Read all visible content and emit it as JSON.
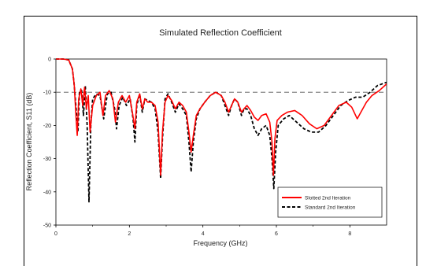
{
  "chart_data": {
    "type": "line",
    "title": "Simulated Reflection Coefficient",
    "xlabel": "Frequency (GHz)",
    "ylabel": "Reflection Coefficient, S11 (dB)",
    "xlim": [
      0,
      9
    ],
    "ylim": [
      -50,
      0
    ],
    "xticks": [
      "0",
      "2",
      "4",
      "6",
      "8"
    ],
    "xtick_values": [
      0,
      2,
      4,
      6,
      8
    ],
    "yticks": [
      "0",
      "-10",
      "-20",
      "-30",
      "-40",
      "-50"
    ],
    "ytick_values": [
      0,
      -10,
      -20,
      -30,
      -40,
      -50
    ],
    "reference_line_y": -10,
    "grid": false,
    "legend_position": "bottom-right",
    "series": [
      {
        "name": "Slotted 2nd Iteration",
        "color": "#ff0000",
        "dash": "solid",
        "points": [
          [
            0.0,
            0.0
          ],
          [
            0.2,
            0.0
          ],
          [
            0.35,
            -0.3
          ],
          [
            0.45,
            -3
          ],
          [
            0.5,
            -8
          ],
          [
            0.55,
            -18
          ],
          [
            0.58,
            -23
          ],
          [
            0.62,
            -12
          ],
          [
            0.68,
            -9
          ],
          [
            0.73,
            -14
          ],
          [
            0.78,
            -8.5
          ],
          [
            0.83,
            -15
          ],
          [
            0.88,
            -11
          ],
          [
            0.93,
            -22
          ],
          [
            1.0,
            -14
          ],
          [
            1.1,
            -11
          ],
          [
            1.2,
            -10
          ],
          [
            1.28,
            -17
          ],
          [
            1.35,
            -11
          ],
          [
            1.45,
            -9.5
          ],
          [
            1.55,
            -12
          ],
          [
            1.62,
            -19
          ],
          [
            1.7,
            -13
          ],
          [
            1.8,
            -11
          ],
          [
            1.9,
            -13
          ],
          [
            2.0,
            -11
          ],
          [
            2.08,
            -16
          ],
          [
            2.15,
            -21
          ],
          [
            2.2,
            -13
          ],
          [
            2.28,
            -10.5
          ],
          [
            2.35,
            -15
          ],
          [
            2.42,
            -12
          ],
          [
            2.5,
            -13
          ],
          [
            2.6,
            -13
          ],
          [
            2.7,
            -14
          ],
          [
            2.78,
            -19
          ],
          [
            2.85,
            -35
          ],
          [
            2.9,
            -22
          ],
          [
            2.97,
            -13
          ],
          [
            3.05,
            -11
          ],
          [
            3.15,
            -12.5
          ],
          [
            3.25,
            -15
          ],
          [
            3.35,
            -13
          ],
          [
            3.45,
            -14
          ],
          [
            3.55,
            -16
          ],
          [
            3.62,
            -22
          ],
          [
            3.68,
            -28
          ],
          [
            3.74,
            -23
          ],
          [
            3.82,
            -17
          ],
          [
            3.92,
            -15
          ],
          [
            4.05,
            -13
          ],
          [
            4.2,
            -11
          ],
          [
            4.35,
            -10
          ],
          [
            4.5,
            -11
          ],
          [
            4.6,
            -13
          ],
          [
            4.7,
            -16
          ],
          [
            4.78,
            -14
          ],
          [
            4.86,
            -12
          ],
          [
            4.95,
            -13
          ],
          [
            5.05,
            -16
          ],
          [
            5.12,
            -15
          ],
          [
            5.2,
            -14
          ],
          [
            5.3,
            -15.5
          ],
          [
            5.4,
            -17.5
          ],
          [
            5.5,
            -18.5
          ],
          [
            5.6,
            -17
          ],
          [
            5.72,
            -16.5
          ],
          [
            5.82,
            -19
          ],
          [
            5.88,
            -25
          ],
          [
            5.92,
            -35
          ],
          [
            5.96,
            -24
          ],
          [
            6.02,
            -18.5
          ],
          [
            6.15,
            -17
          ],
          [
            6.3,
            -16
          ],
          [
            6.5,
            -15.5
          ],
          [
            6.7,
            -17
          ],
          [
            6.9,
            -19.5
          ],
          [
            7.1,
            -21
          ],
          [
            7.3,
            -20
          ],
          [
            7.5,
            -17
          ],
          [
            7.7,
            -14
          ],
          [
            7.9,
            -13
          ],
          [
            8.05,
            -14.5
          ],
          [
            8.2,
            -18
          ],
          [
            8.3,
            -16
          ],
          [
            8.45,
            -13
          ],
          [
            8.6,
            -11
          ],
          [
            8.8,
            -9.5
          ],
          [
            9.0,
            -7.5
          ]
        ]
      },
      {
        "name": "Standard 2nd Iteration",
        "color": "#000000",
        "dash": "dashed",
        "points": [
          [
            0.0,
            0.0
          ],
          [
            0.2,
            0.0
          ],
          [
            0.35,
            -0.3
          ],
          [
            0.45,
            -3
          ],
          [
            0.5,
            -8
          ],
          [
            0.55,
            -15
          ],
          [
            0.6,
            -22
          ],
          [
            0.64,
            -10
          ],
          [
            0.7,
            -9.5
          ],
          [
            0.75,
            -17
          ],
          [
            0.8,
            -8
          ],
          [
            0.85,
            -20
          ],
          [
            0.9,
            -43
          ],
          [
            0.95,
            -20
          ],
          [
            1.0,
            -12
          ],
          [
            1.1,
            -10.5
          ],
          [
            1.2,
            -11
          ],
          [
            1.3,
            -18
          ],
          [
            1.4,
            -10.5
          ],
          [
            1.5,
            -10
          ],
          [
            1.6,
            -15
          ],
          [
            1.65,
            -21
          ],
          [
            1.72,
            -14
          ],
          [
            1.82,
            -11.5
          ],
          [
            1.92,
            -14
          ],
          [
            2.02,
            -12
          ],
          [
            2.1,
            -18
          ],
          [
            2.15,
            -25
          ],
          [
            2.2,
            -14
          ],
          [
            2.28,
            -10.5
          ],
          [
            2.35,
            -16
          ],
          [
            2.42,
            -12
          ],
          [
            2.5,
            -12.5
          ],
          [
            2.6,
            -13
          ],
          [
            2.7,
            -15
          ],
          [
            2.78,
            -22
          ],
          [
            2.85,
            -36
          ],
          [
            2.9,
            -24
          ],
          [
            2.97,
            -12
          ],
          [
            3.05,
            -10.5
          ],
          [
            3.15,
            -13
          ],
          [
            3.25,
            -16
          ],
          [
            3.35,
            -13.5
          ],
          [
            3.45,
            -15
          ],
          [
            3.55,
            -17
          ],
          [
            3.62,
            -25
          ],
          [
            3.68,
            -34
          ],
          [
            3.74,
            -25
          ],
          [
            3.82,
            -18
          ],
          [
            3.92,
            -15
          ],
          [
            4.05,
            -13
          ],
          [
            4.2,
            -11
          ],
          [
            4.35,
            -10
          ],
          [
            4.5,
            -11
          ],
          [
            4.6,
            -14
          ],
          [
            4.7,
            -17
          ],
          [
            4.78,
            -14
          ],
          [
            4.86,
            -12
          ],
          [
            4.95,
            -13
          ],
          [
            5.05,
            -17
          ],
          [
            5.12,
            -15
          ],
          [
            5.2,
            -15
          ],
          [
            5.3,
            -17
          ],
          [
            5.4,
            -21
          ],
          [
            5.5,
            -23
          ],
          [
            5.6,
            -21
          ],
          [
            5.72,
            -20
          ],
          [
            5.82,
            -23
          ],
          [
            5.88,
            -30
          ],
          [
            5.93,
            -39
          ],
          [
            5.98,
            -28
          ],
          [
            6.05,
            -20
          ],
          [
            6.2,
            -18
          ],
          [
            6.35,
            -17
          ],
          [
            6.55,
            -19
          ],
          [
            6.75,
            -21
          ],
          [
            6.95,
            -22
          ],
          [
            7.15,
            -22
          ],
          [
            7.35,
            -20
          ],
          [
            7.55,
            -17
          ],
          [
            7.75,
            -14
          ],
          [
            7.95,
            -12.5
          ],
          [
            8.15,
            -11.5
          ],
          [
            8.35,
            -11.5
          ],
          [
            8.55,
            -10
          ],
          [
            8.75,
            -8
          ],
          [
            9.0,
            -7
          ]
        ]
      }
    ]
  }
}
